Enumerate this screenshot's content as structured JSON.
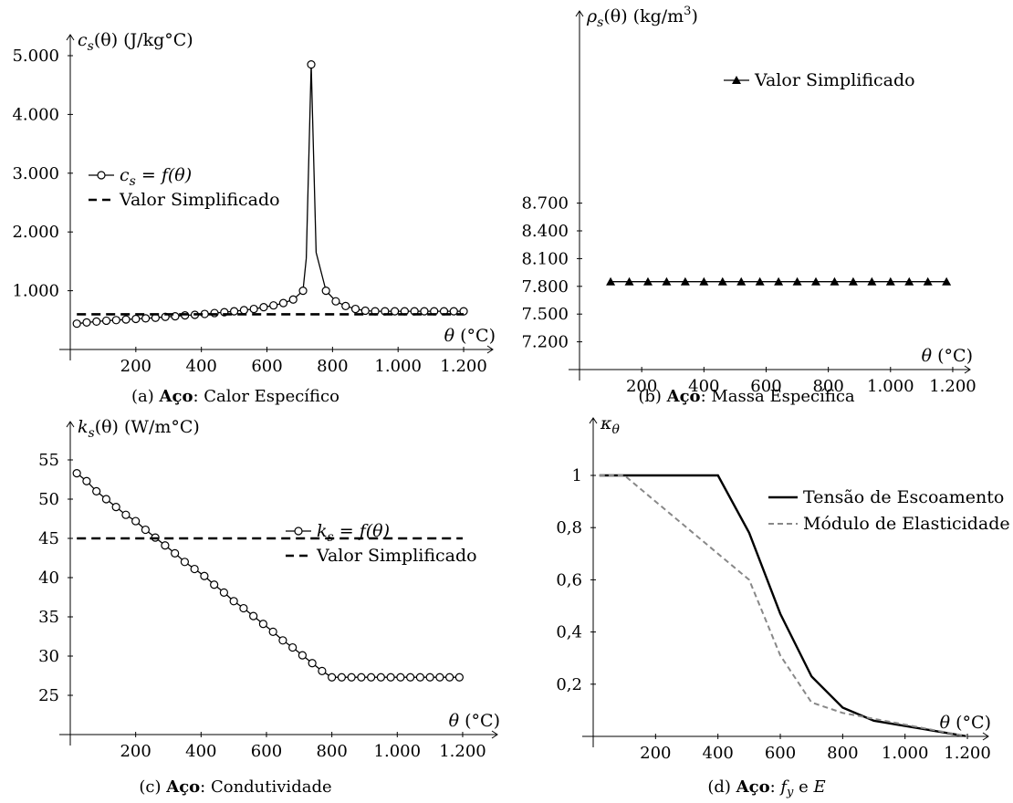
{
  "chart_data": [
    {
      "id": "a",
      "type": "line",
      "caption": {
        "prefix": "(a) ",
        "bold": "Aço",
        "suffix": ": Calor Específico"
      },
      "ylabel": {
        "sym": "c",
        "sub": "s",
        "arg": "(θ)",
        "unit": "(J/kg°C)"
      },
      "xlabel": {
        "sym": "θ",
        "unit": "(°C)"
      },
      "xlim": [
        0,
        1300
      ],
      "ylim": [
        0,
        5000
      ],
      "xticks": [
        200,
        400,
        600,
        800,
        1000,
        1200
      ],
      "xtick_labels": [
        "200",
        "400",
        "600",
        "800",
        "1.000",
        "1.200"
      ],
      "yticks": [
        1000,
        2000,
        3000,
        4000,
        5000
      ],
      "ytick_labels": [
        "1.000",
        "2.000",
        "3.000",
        "4.000",
        "5.000"
      ],
      "legend_position": "center-left",
      "series": [
        {
          "name": "c_s = f(θ)",
          "legend": {
            "sym": "c",
            "sub": "s",
            "rest": " = f(θ)"
          },
          "marker": "open-circle",
          "x": [
            20,
            50,
            80,
            110,
            140,
            170,
            200,
            230,
            260,
            290,
            320,
            350,
            380,
            410,
            440,
            470,
            500,
            530,
            560,
            590,
            620,
            650,
            680,
            710,
            720,
            735,
            750,
            780,
            810,
            840,
            870,
            900,
            930,
            960,
            990,
            1020,
            1050,
            1080,
            1110,
            1140,
            1170,
            1200
          ],
          "y": [
            440,
            460,
            475,
            490,
            500,
            510,
            520,
            530,
            540,
            555,
            565,
            580,
            590,
            605,
            620,
            635,
            650,
            670,
            690,
            720,
            750,
            790,
            850,
            1000,
            1550,
            4850,
            1650,
            1000,
            820,
            740,
            690,
            660,
            650,
            650,
            650,
            650,
            650,
            650,
            650,
            650,
            650,
            650
          ],
          "marker_x": [
            20,
            50,
            80,
            110,
            140,
            170,
            200,
            230,
            260,
            290,
            320,
            350,
            380,
            410,
            440,
            470,
            500,
            530,
            560,
            590,
            620,
            650,
            680,
            710,
            735,
            780,
            810,
            840,
            870,
            900,
            930,
            960,
            990,
            1020,
            1050,
            1080,
            1110,
            1140,
            1170,
            1200
          ]
        },
        {
          "name": "Valor Simplificado",
          "legend": {
            "text": "Valor Simplificado"
          },
          "style": "dashed",
          "x": [
            20,
            1200
          ],
          "y": [
            600,
            600
          ]
        }
      ]
    },
    {
      "id": "b",
      "type": "line",
      "caption": {
        "prefix": "(b) ",
        "bold": "Aço",
        "suffix": ": Massa Específica"
      },
      "ylabel": {
        "sym": "ρ",
        "sub": "s",
        "arg": "(θ)",
        "unit": "(kg/m",
        "sup": "3",
        "unitclose": ")"
      },
      "xlabel": {
        "sym": "θ",
        "unit": "(°C)"
      },
      "xlim": [
        0,
        1300
      ],
      "ylim": [
        6900,
        8800
      ],
      "xticks": [
        200,
        400,
        600,
        800,
        1000,
        1200
      ],
      "xtick_labels": [
        "200",
        "400",
        "600",
        "800",
        "1.000",
        "1.200"
      ],
      "yticks": [
        7200,
        7500,
        7800,
        8100,
        8400,
        8700
      ],
      "ytick_labels": [
        "7.200",
        "7.500",
        "7.800",
        "8.100",
        "8.400",
        "8.700"
      ],
      "legend_position": "top-center",
      "series": [
        {
          "name": "Valor Simplificado",
          "legend": {
            "text": "Valor Simplificado"
          },
          "marker": "filled-triangle",
          "x": [
            100,
            160,
            220,
            280,
            340,
            400,
            460,
            520,
            580,
            640,
            700,
            760,
            820,
            880,
            940,
            1000,
            1060,
            1120,
            1180
          ],
          "y": [
            7850,
            7850,
            7850,
            7850,
            7850,
            7850,
            7850,
            7850,
            7850,
            7850,
            7850,
            7850,
            7850,
            7850,
            7850,
            7850,
            7850,
            7850,
            7850
          ]
        }
      ]
    },
    {
      "id": "c",
      "type": "line",
      "caption": {
        "prefix": "(c) ",
        "bold": "Aço",
        "suffix": ": Condutividade"
      },
      "ylabel": {
        "sym": "k",
        "sub": "s",
        "arg": "(θ)",
        "unit": "(W/m°C)"
      },
      "xlabel": {
        "sym": "θ",
        "unit": "(°C)"
      },
      "xlim": [
        0,
        1300
      ],
      "ylim": [
        20,
        57
      ],
      "xticks": [
        200,
        400,
        600,
        800,
        1000,
        1200
      ],
      "xtick_labels": [
        "200",
        "400",
        "600",
        "800",
        "1.000",
        "1.200"
      ],
      "yticks": [
        25,
        30,
        35,
        40,
        45,
        50,
        55
      ],
      "ytick_labels": [
        "25",
        "30",
        "35",
        "40",
        "45",
        "50",
        "55"
      ],
      "legend_position": "center-right",
      "series": [
        {
          "name": "k_s = f(θ)",
          "legend": {
            "sym": "k",
            "sub": "s",
            "rest": " = f(θ)"
          },
          "marker": "open-circle",
          "x": [
            20,
            50,
            80,
            110,
            140,
            170,
            200,
            230,
            260,
            290,
            320,
            350,
            380,
            410,
            440,
            470,
            500,
            530,
            560,
            590,
            620,
            650,
            680,
            710,
            740,
            770,
            800,
            830,
            860,
            890,
            920,
            950,
            980,
            1010,
            1040,
            1070,
            1100,
            1130,
            1160,
            1190
          ],
          "y": [
            53.3,
            52.3,
            51.0,
            50.0,
            49.0,
            48.0,
            47.2,
            46.1,
            45.1,
            44.1,
            43.1,
            42.0,
            41.1,
            40.2,
            39.1,
            38.1,
            37.0,
            36.1,
            35.1,
            34.1,
            33.1,
            32.0,
            31.1,
            30.1,
            29.1,
            28.1,
            27.3,
            27.3,
            27.3,
            27.3,
            27.3,
            27.3,
            27.3,
            27.3,
            27.3,
            27.3,
            27.3,
            27.3,
            27.3,
            27.3
          ]
        },
        {
          "name": "Valor Simplificado",
          "legend": {
            "text": "Valor Simplificado"
          },
          "style": "dashed",
          "x": [
            20,
            1200
          ],
          "y": [
            45,
            45
          ]
        }
      ]
    },
    {
      "id": "d",
      "type": "line",
      "caption": {
        "prefix": "(d) ",
        "bold": "Aço",
        "suffix": ": ",
        "f": "f",
        "fsub": "y",
        "and": " e ",
        "e": "E"
      },
      "ylabel": {
        "sym": "κ",
        "sub": "θ"
      },
      "xlabel": {
        "sym": "θ",
        "unit": "(°C)"
      },
      "xlim": [
        0,
        1300
      ],
      "ylim": [
        0,
        1.15
      ],
      "xticks": [
        200,
        400,
        600,
        800,
        1000,
        1200
      ],
      "xtick_labels": [
        "200",
        "400",
        "600",
        "800",
        "1.000",
        "1.200"
      ],
      "yticks": [
        0.2,
        0.4,
        0.6,
        0.8,
        1.0
      ],
      "ytick_labels": [
        "0,2",
        "0,4",
        "0,6",
        "0,8",
        "1"
      ],
      "legend_position": "top-right",
      "series": [
        {
          "name": "Tensão de Escoamento",
          "legend": {
            "text": "Tensão de Escoamento"
          },
          "style": "solid-thick",
          "color": "#000000",
          "x": [
            20,
            100,
            200,
            300,
            400,
            500,
            600,
            700,
            800,
            900,
            1000,
            1100,
            1200
          ],
          "y": [
            1,
            1,
            1,
            1,
            1,
            0.78,
            0.47,
            0.23,
            0.11,
            0.06,
            0.04,
            0.02,
            0
          ]
        },
        {
          "name": "Módulo de Elasticidade",
          "legend": {
            "text": "Módulo de Elasticidade"
          },
          "style": "dashed",
          "color": "#888888",
          "x": [
            20,
            100,
            200,
            300,
            400,
            500,
            600,
            700,
            800,
            900,
            1000,
            1100,
            1200
          ],
          "y": [
            1,
            1,
            0.9,
            0.8,
            0.7,
            0.6,
            0.31,
            0.13,
            0.09,
            0.0675,
            0.045,
            0.0225,
            0
          ]
        }
      ]
    }
  ]
}
